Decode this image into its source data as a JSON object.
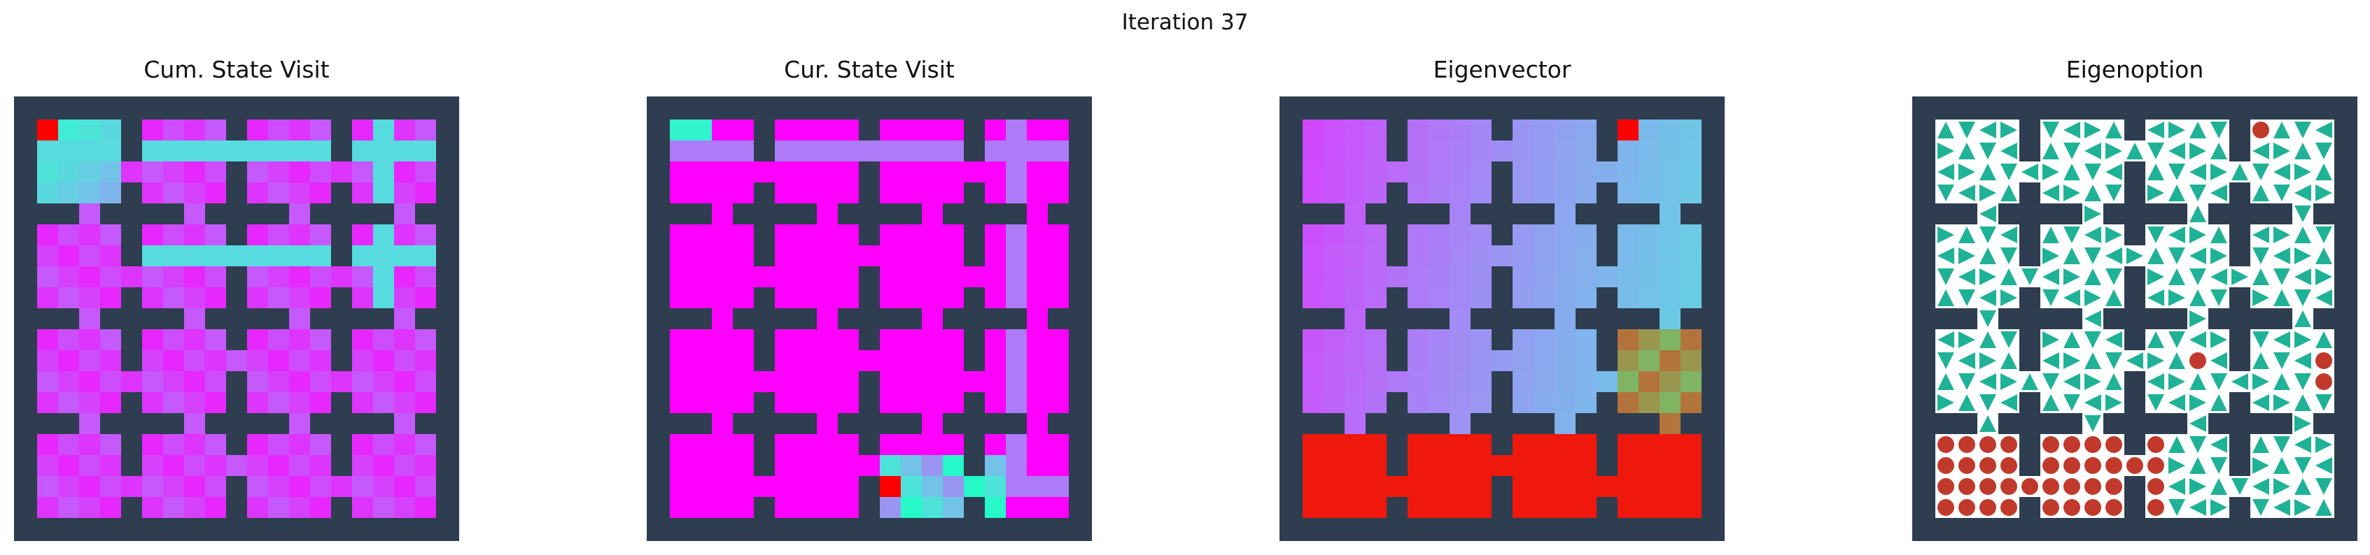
{
  "figure": {
    "suptitle": "Iteration 37"
  },
  "chart_data": [
    {
      "type": "heatmap",
      "title": "Cum. State Visit",
      "colormap": "rainbow",
      "grid": false
    },
    {
      "type": "heatmap",
      "title": "Cur. State Visit",
      "colormap": "rainbow",
      "grid": false
    },
    {
      "type": "heatmap",
      "title": "Eigenvector",
      "colormap": "rainbow",
      "grid": false
    },
    {
      "type": "table",
      "title": "Eigenoption",
      "grid": false
    }
  ],
  "colors": {
    "wall": "#2e3d4f",
    "arrow": "#1fb296",
    "terminal": "#c0392b"
  }
}
